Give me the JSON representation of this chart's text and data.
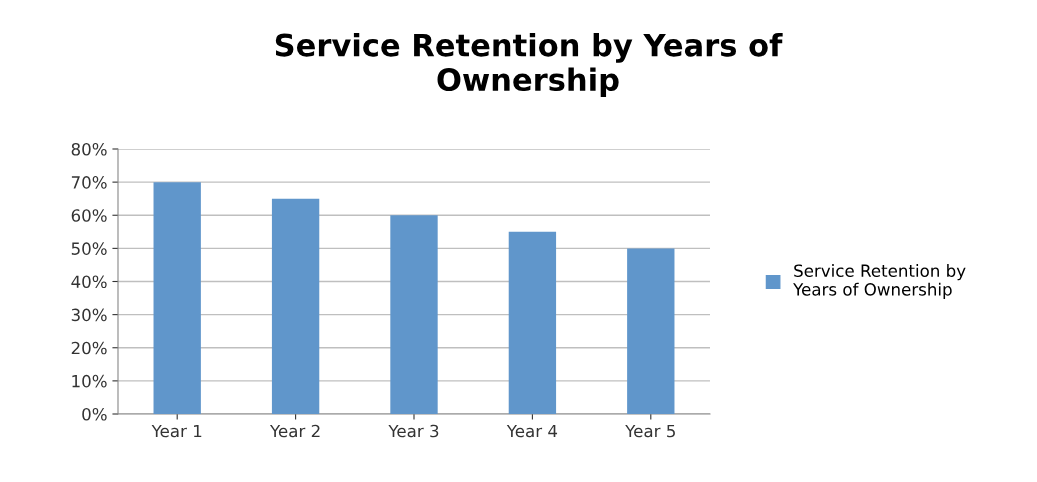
{
  "chart_data": {
    "type": "bar",
    "title": "Service Retention by Years of\nOwnership",
    "categories": [
      "Year 1",
      "Year 2",
      "Year 3",
      "Year 4",
      "Year 5"
    ],
    "series": [
      {
        "name": "Service Retention by\nYears of Ownership",
        "color": "#6096cb",
        "values": [
          70,
          65,
          60,
          55,
          50
        ]
      }
    ],
    "ylim": [
      0,
      80
    ],
    "yticks": [
      {
        "value": 0,
        "label": "0%"
      },
      {
        "value": 10,
        "label": "10%"
      },
      {
        "value": 20,
        "label": "20%"
      },
      {
        "value": 30,
        "label": "30%"
      },
      {
        "value": 40,
        "label": "40%"
      },
      {
        "value": 50,
        "label": "50%"
      },
      {
        "value": 60,
        "label": "60%"
      },
      {
        "value": 70,
        "label": "70%"
      },
      {
        "value": 80,
        "label": "80%"
      }
    ],
    "grid": "y",
    "legend": "right"
  }
}
